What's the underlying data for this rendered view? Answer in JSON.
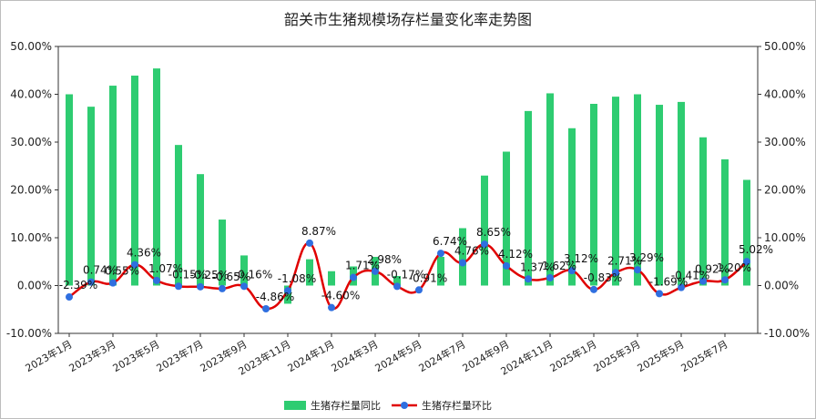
{
  "chart_data": {
    "type": "bar",
    "title": "韶关市生猪规模场存栏量变化率走势图",
    "categories": [
      "2023年1月",
      "2023年2月",
      "2023年3月",
      "2023年4月",
      "2023年5月",
      "2023年6月",
      "2023年7月",
      "2023年8月",
      "2023年9月",
      "2023年10月",
      "2023年11月",
      "2023年12月",
      "2024年1月",
      "2024年2月",
      "2024年3月",
      "2024年4月",
      "2024年5月",
      "2024年6月",
      "2024年7月",
      "2024年8月",
      "2024年9月",
      "2024年10月",
      "2024年11月",
      "2024年12月",
      "2025年1月",
      "2025年2月",
      "2025年3月",
      "2025年4月",
      "2025年5月",
      "2025年6月",
      "2025年7月",
      "2025年8月"
    ],
    "x_tick_labels": [
      "2023年1月",
      "2023年3月",
      "2023年5月",
      "2023年7月",
      "2023年9月",
      "2023年11月",
      "2024年1月",
      "2024年3月",
      "2024年5月",
      "2024年7月",
      "2024年9月",
      "2024年11月",
      "2025年1月",
      "2025年3月",
      "2025年5月",
      "2025年7月"
    ],
    "series": [
      {
        "name": "生猪存栏量同比",
        "type": "bar",
        "axis": "left",
        "color": "#2ecc71",
        "values": [
          40.0,
          37.4,
          41.8,
          43.9,
          45.4,
          29.4,
          23.3,
          13.8,
          6.3,
          0.0,
          -3.8,
          5.5,
          3.0,
          4.0,
          6.0,
          2.0,
          0.0,
          6.0,
          12.0,
          23.0,
          28.0,
          36.5,
          40.2,
          32.9,
          38.0,
          39.5,
          40.0,
          37.8,
          38.4,
          31.0,
          26.4,
          22.1
        ]
      },
      {
        "name": "生猪存栏量环比",
        "type": "line",
        "axis": "right",
        "color": "#e00000",
        "marker_color": "#2f6fe0",
        "values": [
          -2.39,
          0.74,
          0.55,
          4.36,
          1.07,
          -0.15,
          -0.25,
          -0.65,
          -0.16,
          -4.86,
          -1.08,
          8.87,
          -4.6,
          1.71,
          2.98,
          -0.17,
          -0.91,
          6.74,
          4.76,
          8.65,
          4.12,
          1.37,
          1.62,
          3.12,
          -0.83,
          2.71,
          3.29,
          -1.69,
          -0.41,
          0.92,
          1.2,
          5.02
        ],
        "labels": [
          "-2.39%",
          "0.74%",
          "0.55%",
          "4.36%",
          "1.07%",
          "-0.15%",
          "-0.25%",
          "-0.65%",
          "-0.16%",
          "-4.86%",
          "-1.08%",
          "8.87%",
          "-4.60%",
          "1.71%",
          "2.98%",
          "-0.17%",
          "-0.91%",
          "6.74%",
          "4.76%",
          "8.65%",
          "4.12%",
          "1.37%",
          "1.62%",
          "3.12%",
          "-0.83%",
          "2.71%",
          "3.29%",
          "-1.69%",
          "-0.41%",
          "0.92%",
          "1.20%",
          "5.02%"
        ]
      }
    ],
    "ylim": [
      -10,
      50
    ],
    "y2lim": [
      -10,
      50
    ],
    "y_ticks": [
      "-10.00%",
      "0.00%",
      "10.00%",
      "20.00%",
      "30.00%",
      "40.00%",
      "50.00%"
    ],
    "grid": false,
    "legend_position": "bottom"
  }
}
